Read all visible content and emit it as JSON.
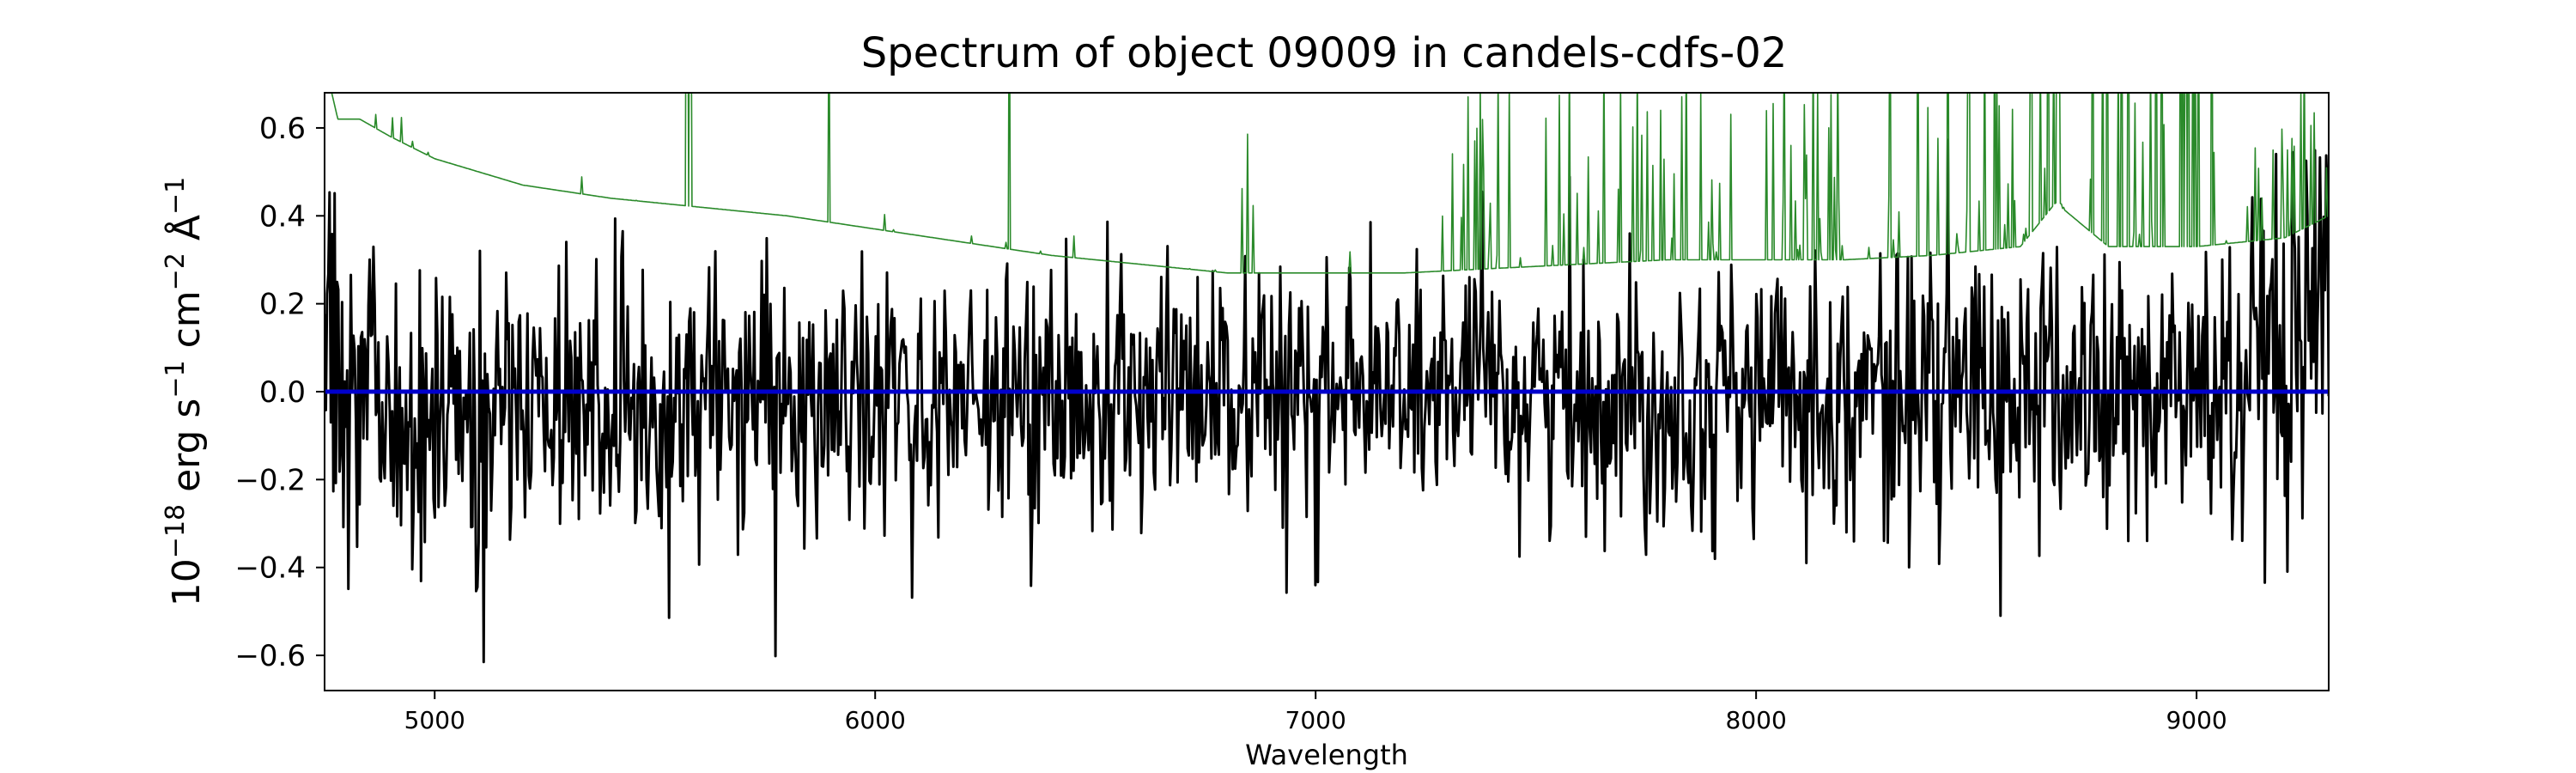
{
  "chart_data": {
    "type": "line",
    "title": "Spectrum of object 09009 in candels-cdfs-02",
    "xlabel": "Wavelength",
    "ylabel": "10^{-18} erg s^{-1} cm^{-2} Å^{-1}",
    "ylabel_parts": {
      "base": "10",
      "exp1": "−18",
      "unit_erg": " erg s",
      "exp2": "−1",
      "unit_cm": " cm",
      "exp3": "−2",
      "unit_a": " Å",
      "exp4": "−1"
    },
    "xlim": [
      4750,
      9300
    ],
    "ylim": [
      -0.68,
      0.68
    ],
    "xticks": [
      5000,
      6000,
      7000,
      8000,
      9000
    ],
    "yticks": [
      -0.6,
      -0.4,
      -0.2,
      0.0,
      0.2,
      0.4,
      0.6
    ],
    "ytick_labels": [
      "−0.6",
      "−0.4",
      "−0.2",
      "0.0",
      "0.2",
      "0.4",
      "0.6"
    ],
    "grid": false,
    "legend": "none",
    "series": [
      {
        "role": "flux",
        "color": "#000000",
        "style": "noisy",
        "x": [
          4750,
          4800,
          4850,
          4900,
          5000,
          5100,
          5200,
          5400,
          5600,
          5800,
          6000,
          6200,
          6400,
          6600,
          6800,
          7000,
          7200,
          7400,
          7600,
          7800,
          8000,
          8200,
          8400,
          8600,
          8800,
          9000,
          9200,
          9300
        ],
        "y": [
          0.0,
          0.02,
          0.0,
          -0.02,
          -0.05,
          -0.08,
          -0.06,
          -0.04,
          -0.04,
          -0.03,
          -0.03,
          -0.02,
          -0.02,
          -0.02,
          -0.02,
          -0.02,
          0.0,
          0.0,
          -0.01,
          -0.02,
          0.0,
          0.0,
          0.0,
          0.0,
          -0.02,
          0.0,
          0.0,
          0.1
        ],
        "noise_sigma": [
          0.22,
          0.22,
          0.2,
          0.2,
          0.2,
          0.19,
          0.17,
          0.16,
          0.16,
          0.15,
          0.15,
          0.14,
          0.14,
          0.13,
          0.13,
          0.13,
          0.14,
          0.14,
          0.15,
          0.15,
          0.14,
          0.15,
          0.17,
          0.16,
          0.17,
          0.19,
          0.2,
          0.3
        ]
      },
      {
        "role": "error",
        "color": "#2a8a2a",
        "style": "envelope",
        "x": [
          4750,
          4780,
          4830,
          4900,
          5000,
          5200,
          5400,
          5600,
          5800,
          6000,
          6200,
          6400,
          6600,
          6800,
          7000,
          7200,
          7400,
          7600,
          7800,
          8000,
          8200,
          8400,
          8600,
          8680,
          8800,
          9000,
          9200,
          9300
        ],
        "y": [
          0.75,
          0.62,
          0.62,
          0.58,
          0.53,
          0.47,
          0.44,
          0.42,
          0.4,
          0.37,
          0.34,
          0.31,
          0.29,
          0.27,
          0.27,
          0.27,
          0.28,
          0.29,
          0.3,
          0.3,
          0.3,
          0.31,
          0.33,
          0.43,
          0.33,
          0.33,
          0.35,
          0.4
        ]
      },
      {
        "role": "model",
        "color": "#0000cc",
        "style": "flat",
        "x": [
          4750,
          9300
        ],
        "y": [
          0.0,
          0.0
        ]
      }
    ]
  }
}
